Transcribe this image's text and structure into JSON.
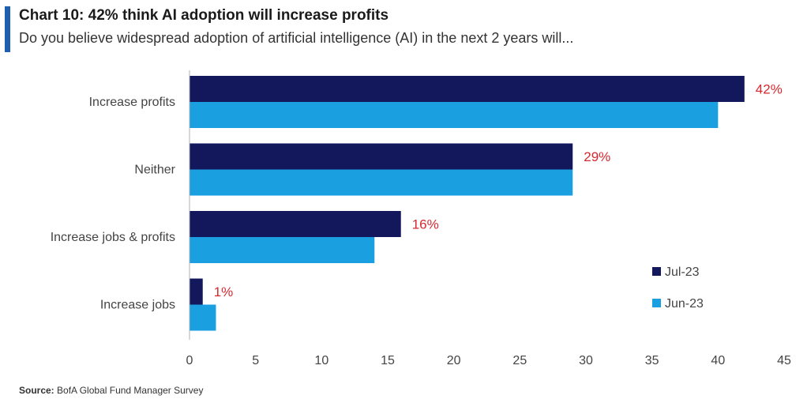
{
  "header": {
    "title": "Chart 10: 42% think AI adoption will increase profits",
    "subtitle": "Do you believe widespread adoption of artificial intelligence (AI) in the next 2 years will..."
  },
  "footer": {
    "source_label": "Source:",
    "source_text": "BofA Global Fund Manager Survey"
  },
  "colors": {
    "accent": "#1f5fb0",
    "jul": "#13175c",
    "jun": "#1a9fe0",
    "value_label": "#d7282f"
  },
  "chart_data": {
    "type": "bar",
    "orientation": "horizontal",
    "categories": [
      "Increase profits",
      "Neither",
      "Increase jobs & profits",
      "Increase jobs"
    ],
    "series": [
      {
        "name": "Jul-23",
        "values": [
          42,
          29,
          16,
          1
        ],
        "labels": [
          "42%",
          "29%",
          "16%",
          "1%"
        ]
      },
      {
        "name": "Jun-23",
        "values": [
          40,
          29,
          14,
          2
        ]
      }
    ],
    "xlim": [
      0,
      45
    ],
    "xticks": [
      0,
      5,
      10,
      15,
      20,
      25,
      30,
      35,
      40,
      45
    ],
    "grid": false,
    "legend_position": "bottom-right"
  }
}
